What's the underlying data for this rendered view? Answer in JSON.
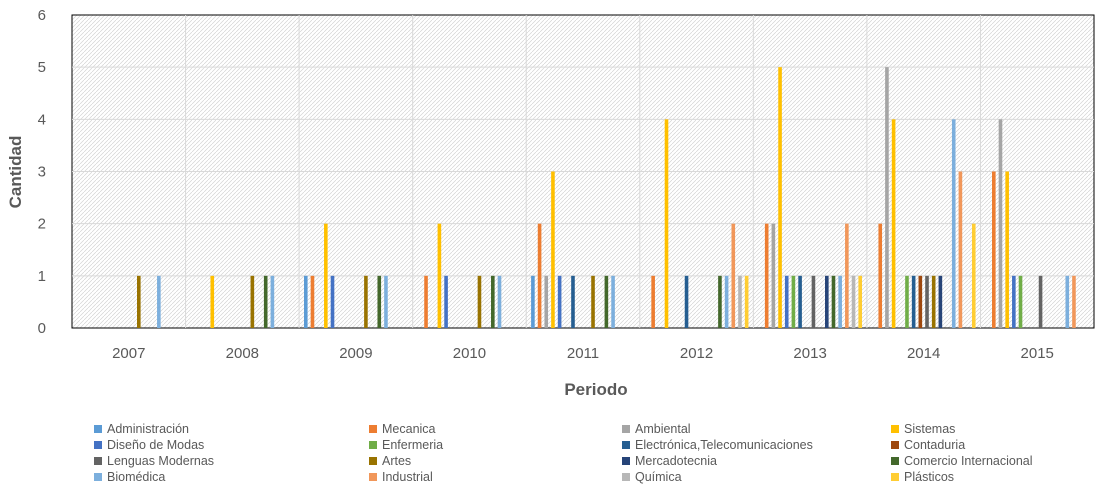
{
  "chart_data": {
    "type": "bar",
    "xlabel": "Periodo",
    "ylabel": "Cantidad",
    "ylim": [
      0,
      6
    ],
    "yticks": [
      "0",
      "1",
      "2",
      "3",
      "4",
      "5",
      "6"
    ],
    "categories": [
      "2007",
      "2008",
      "2009",
      "2010",
      "2011",
      "2012",
      "2013",
      "2014",
      "2015"
    ],
    "grid": true,
    "legend_position": "bottom",
    "series": [
      {
        "name": "Administración",
        "color": "#5B9BD5",
        "values": [
          0,
          0,
          1,
          0,
          1,
          0,
          0,
          0,
          0
        ]
      },
      {
        "name": "Mecanica",
        "color": "#ED7D31",
        "values": [
          0,
          0,
          1,
          1,
          2,
          1,
          2,
          2,
          3
        ]
      },
      {
        "name": "Ambiental",
        "color": "#A5A5A5",
        "values": [
          0,
          0,
          0,
          0,
          1,
          0,
          2,
          5,
          4
        ]
      },
      {
        "name": "Sistemas",
        "color": "#FFC000",
        "values": [
          0,
          1,
          2,
          2,
          3,
          4,
          5,
          4,
          3
        ]
      },
      {
        "name": "Diseño de Modas",
        "color": "#4472C4",
        "values": [
          0,
          0,
          1,
          1,
          1,
          0,
          1,
          0,
          1
        ]
      },
      {
        "name": "Enfermeria",
        "color": "#70AD47",
        "values": [
          0,
          0,
          0,
          0,
          0,
          0,
          1,
          1,
          1
        ]
      },
      {
        "name": "Electrónica,Telecomunicaciones",
        "color": "#255E91",
        "values": [
          0,
          0,
          0,
          0,
          1,
          1,
          1,
          1,
          0
        ]
      },
      {
        "name": "Contaduria",
        "color": "#9E480E",
        "values": [
          0,
          0,
          0,
          0,
          0,
          0,
          0,
          1,
          0
        ]
      },
      {
        "name": "Lenguas Modernas",
        "color": "#636363",
        "values": [
          0,
          0,
          0,
          0,
          0,
          0,
          1,
          1,
          1
        ]
      },
      {
        "name": "Artes",
        "color": "#997300",
        "values": [
          1,
          1,
          1,
          1,
          1,
          0,
          0,
          1,
          0
        ]
      },
      {
        "name": "Mercadotecnia",
        "color": "#264478",
        "values": [
          0,
          0,
          0,
          0,
          0,
          0,
          1,
          1,
          0
        ]
      },
      {
        "name": "Comercio Internacional",
        "color": "#43682B",
        "values": [
          0,
          1,
          1,
          1,
          1,
          1,
          1,
          0,
          0
        ]
      },
      {
        "name": "Biomédica",
        "color": "#7CAFDD",
        "values": [
          1,
          1,
          1,
          1,
          1,
          1,
          1,
          4,
          1
        ]
      },
      {
        "name": "Industrial",
        "color": "#F1975A",
        "values": [
          0,
          0,
          0,
          0,
          0,
          2,
          2,
          3,
          1
        ]
      },
      {
        "name": "Química",
        "color": "#B7B7B7",
        "values": [
          0,
          0,
          0,
          0,
          0,
          1,
          1,
          0,
          0
        ]
      },
      {
        "name": "Plásticos",
        "color": "#FFCD33",
        "values": [
          0,
          0,
          0,
          0,
          0,
          1,
          1,
          2,
          0
        ]
      }
    ]
  }
}
